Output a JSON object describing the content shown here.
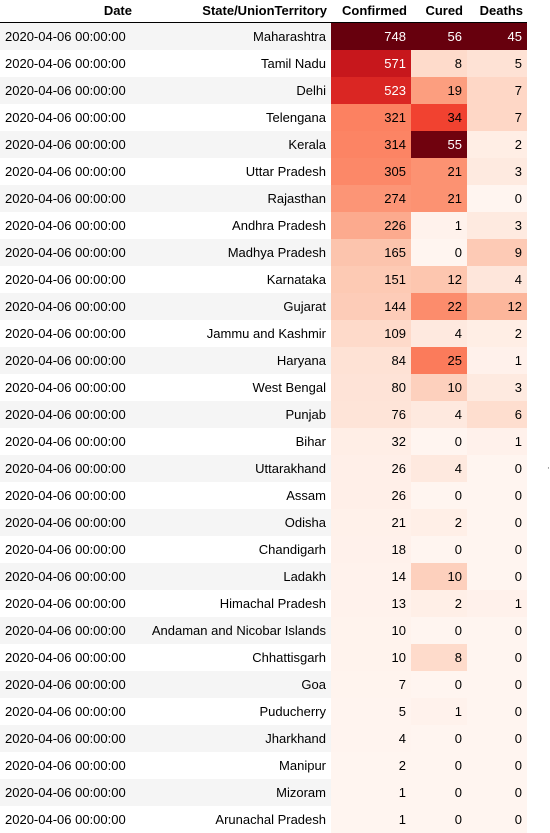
{
  "columns": [
    "Date",
    "State/UnionTerritory",
    "Confirmed",
    "Cured",
    "Deaths"
  ],
  "rows": [
    {
      "date": "2020-04-06 00:00:00",
      "state": "Maharashtra",
      "confirmed": 748,
      "cured": 56,
      "deaths": 45
    },
    {
      "date": "2020-04-06 00:00:00",
      "state": "Tamil Nadu",
      "confirmed": 571,
      "cured": 8,
      "deaths": 5
    },
    {
      "date": "2020-04-06 00:00:00",
      "state": "Delhi",
      "confirmed": 523,
      "cured": 19,
      "deaths": 7
    },
    {
      "date": "2020-04-06 00:00:00",
      "state": "Telengana",
      "confirmed": 321,
      "cured": 34,
      "deaths": 7
    },
    {
      "date": "2020-04-06 00:00:00",
      "state": "Kerala",
      "confirmed": 314,
      "cured": 55,
      "deaths": 2
    },
    {
      "date": "2020-04-06 00:00:00",
      "state": "Uttar Pradesh",
      "confirmed": 305,
      "cured": 21,
      "deaths": 3
    },
    {
      "date": "2020-04-06 00:00:00",
      "state": "Rajasthan",
      "confirmed": 274,
      "cured": 21,
      "deaths": 0
    },
    {
      "date": "2020-04-06 00:00:00",
      "state": "Andhra Pradesh",
      "confirmed": 226,
      "cured": 1,
      "deaths": 3
    },
    {
      "date": "2020-04-06 00:00:00",
      "state": "Madhya Pradesh",
      "confirmed": 165,
      "cured": 0,
      "deaths": 9
    },
    {
      "date": "2020-04-06 00:00:00",
      "state": "Karnataka",
      "confirmed": 151,
      "cured": 12,
      "deaths": 4
    },
    {
      "date": "2020-04-06 00:00:00",
      "state": "Gujarat",
      "confirmed": 144,
      "cured": 22,
      "deaths": 12
    },
    {
      "date": "2020-04-06 00:00:00",
      "state": "Jammu and Kashmir",
      "confirmed": 109,
      "cured": 4,
      "deaths": 2
    },
    {
      "date": "2020-04-06 00:00:00",
      "state": "Haryana",
      "confirmed": 84,
      "cured": 25,
      "deaths": 1
    },
    {
      "date": "2020-04-06 00:00:00",
      "state": "West Bengal",
      "confirmed": 80,
      "cured": 10,
      "deaths": 3
    },
    {
      "date": "2020-04-06 00:00:00",
      "state": "Punjab",
      "confirmed": 76,
      "cured": 4,
      "deaths": 6
    },
    {
      "date": "2020-04-06 00:00:00",
      "state": "Bihar",
      "confirmed": 32,
      "cured": 0,
      "deaths": 1
    },
    {
      "date": "2020-04-06 00:00:00",
      "state": "Uttarakhand",
      "confirmed": 26,
      "cured": 4,
      "deaths": 0
    },
    {
      "date": "2020-04-06 00:00:00",
      "state": "Assam",
      "confirmed": 26,
      "cured": 0,
      "deaths": 0
    },
    {
      "date": "2020-04-06 00:00:00",
      "state": "Odisha",
      "confirmed": 21,
      "cured": 2,
      "deaths": 0
    },
    {
      "date": "2020-04-06 00:00:00",
      "state": "Chandigarh",
      "confirmed": 18,
      "cured": 0,
      "deaths": 0
    },
    {
      "date": "2020-04-06 00:00:00",
      "state": "Ladakh",
      "confirmed": 14,
      "cured": 10,
      "deaths": 0
    },
    {
      "date": "2020-04-06 00:00:00",
      "state": "Himachal Pradesh",
      "confirmed": 13,
      "cured": 2,
      "deaths": 1
    },
    {
      "date": "2020-04-06 00:00:00",
      "state": "Andaman and Nicobar Islands",
      "confirmed": 10,
      "cured": 0,
      "deaths": 0
    },
    {
      "date": "2020-04-06 00:00:00",
      "state": "Chhattisgarh",
      "confirmed": 10,
      "cured": 8,
      "deaths": 0
    },
    {
      "date": "2020-04-06 00:00:00",
      "state": "Goa",
      "confirmed": 7,
      "cured": 0,
      "deaths": 0
    },
    {
      "date": "2020-04-06 00:00:00",
      "state": "Puducherry",
      "confirmed": 5,
      "cured": 1,
      "deaths": 0
    },
    {
      "date": "2020-04-06 00:00:00",
      "state": "Jharkhand",
      "confirmed": 4,
      "cured": 0,
      "deaths": 0
    },
    {
      "date": "2020-04-06 00:00:00",
      "state": "Manipur",
      "confirmed": 2,
      "cured": 0,
      "deaths": 0
    },
    {
      "date": "2020-04-06 00:00:00",
      "state": "Mizoram",
      "confirmed": 1,
      "cured": 0,
      "deaths": 0
    },
    {
      "date": "2020-04-06 00:00:00",
      "state": "Arunachal Pradesh",
      "confirmed": 1,
      "cured": 0,
      "deaths": 0
    }
  ],
  "colormap": {
    "name": "Reds",
    "low_color": "#fff5f0",
    "high_color": "#67000d",
    "light_text": "#ffffff",
    "dark_text": "#000000"
  },
  "scroll_marker": "·"
}
